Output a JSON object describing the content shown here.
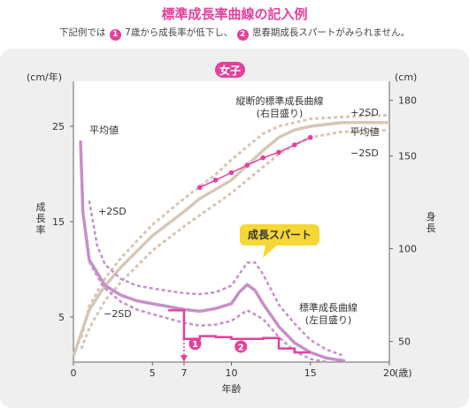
{
  "header": {
    "title": "標準成長率曲線の記入例",
    "subtitle": {
      "prefix": "下記例では",
      "badge1": "1",
      "part1": "7歳から成長率が低下し、",
      "badge2": "2",
      "part2": "思春期成長スパートがみられません。"
    }
  },
  "chart_data": {
    "type": "line",
    "group_label": "女子",
    "xlabel": "年齢",
    "x_unit": "(歳)",
    "x_ticks": [
      "0",
      "5",
      "7",
      "10",
      "15",
      "20"
    ],
    "xlim": [
      0,
      20
    ],
    "left_axis": {
      "unit": "(cm/年)",
      "label": "成長率",
      "ticks": [
        "5",
        "15",
        "25"
      ],
      "ylim": [
        0,
        28
      ]
    },
    "right_axis": {
      "unit": "(cm)",
      "label": "身長",
      "ticks": [
        "50",
        "100",
        "150",
        "180"
      ],
      "ylim": [
        40,
        183
      ]
    },
    "annotations": {
      "height_curve_title": "縦断的標準成長曲線\n(右目盛り)",
      "velocity_curve_title": "標準成長曲線\n(左目盛り)",
      "spurt_callout": "成長スパート",
      "plus2sd": "+2SD",
      "minus2sd": "−2SD",
      "mean": "平均値",
      "marker1": "1",
      "marker2": "2"
    },
    "colors": {
      "height_curve": "#d6c7b7",
      "velocity_curve": "#c690c8",
      "patient": "#e4419b",
      "callout": "#f5d735"
    },
    "series": [
      {
        "axis": "right",
        "values": [
          [
            0,
            42
          ],
          [
            1,
            67
          ],
          [
            2,
            80
          ],
          [
            3,
            90
          ],
          [
            5,
            107
          ],
          [
            7,
            120
          ],
          [
            8,
            127
          ],
          [
            10,
            137
          ],
          [
            11,
            145
          ],
          [
            12,
            153
          ],
          [
            13,
            160
          ],
          [
            14,
            164
          ],
          [
            15,
            166
          ],
          [
            17,
            168
          ],
          [
            20,
            168
          ]
        ]
      },
      {
        "axis": "right",
        "values": [
          [
            0.5,
            52
          ],
          [
            1,
            69
          ],
          [
            2,
            84
          ],
          [
            3,
            95
          ],
          [
            5,
            113
          ],
          [
            7,
            127
          ],
          [
            9,
            140
          ],
          [
            10,
            148
          ],
          [
            11,
            155
          ],
          [
            12,
            162
          ],
          [
            13,
            166
          ],
          [
            15,
            170
          ],
          [
            17,
            171
          ],
          [
            20,
            172
          ]
        ]
      },
      {
        "axis": "right",
        "values": [
          [
            0.5,
            46
          ],
          [
            1,
            57
          ],
          [
            2,
            72
          ],
          [
            3,
            82
          ],
          [
            5,
            99
          ],
          [
            7,
            112
          ],
          [
            9,
            124
          ],
          [
            10,
            130
          ],
          [
            11,
            137
          ],
          [
            12,
            144
          ],
          [
            13,
            151
          ],
          [
            14,
            156
          ],
          [
            15,
            160
          ],
          [
            17,
            163
          ],
          [
            20,
            164
          ]
        ]
      },
      {
        "axis": "left",
        "values": [
          [
            0.45,
            23.5
          ],
          [
            0.6,
            16
          ],
          [
            1,
            11
          ],
          [
            2,
            8.3
          ],
          [
            3,
            7.3
          ],
          [
            4,
            6.7
          ],
          [
            5,
            6.4
          ],
          [
            7,
            5.8
          ],
          [
            8,
            5.6
          ],
          [
            9,
            5.9
          ],
          [
            10,
            6.4
          ],
          [
            10.5,
            7.6
          ],
          [
            11,
            8.4
          ],
          [
            11.5,
            7.8
          ],
          [
            12,
            6.4
          ],
          [
            13,
            4
          ],
          [
            14,
            2.3
          ],
          [
            15,
            1.3
          ],
          [
            16,
            0.7
          ],
          [
            17.2,
            0.4
          ]
        ]
      },
      {
        "axis": "left",
        "values": [
          [
            1,
            17.2
          ],
          [
            1.5,
            12.5
          ],
          [
            2,
            10.5
          ],
          [
            3,
            9
          ],
          [
            4,
            8.3
          ],
          [
            5,
            8
          ],
          [
            7,
            7.5
          ],
          [
            8,
            7.4
          ],
          [
            9,
            7.6
          ],
          [
            10,
            8.3
          ],
          [
            11,
            10.7
          ],
          [
            11.5,
            10.7
          ],
          [
            12,
            9.5
          ],
          [
            13,
            6.3
          ],
          [
            14,
            4.3
          ],
          [
            15,
            2.6
          ],
          [
            16,
            1.6
          ],
          [
            17,
            1
          ]
        ]
      },
      {
        "axis": "left",
        "values": [
          [
            1,
            10.8
          ],
          [
            1.5,
            9.3
          ],
          [
            2,
            8
          ],
          [
            3,
            6.6
          ],
          [
            4,
            5.8
          ],
          [
            5,
            5.3
          ],
          [
            7,
            4.4
          ],
          [
            8,
            4.1
          ],
          [
            9,
            4.2
          ],
          [
            10,
            4.6
          ],
          [
            11,
            5.7
          ],
          [
            12,
            4.8
          ],
          [
            13,
            2.9
          ],
          [
            14,
            1.4
          ],
          [
            15,
            0.6
          ],
          [
            16,
            0.3
          ]
        ]
      },
      {
        "axis": "right",
        "values": [
          [
            8,
            133
          ],
          [
            9,
            137
          ],
          [
            10,
            141
          ],
          [
            11,
            145
          ],
          [
            12,
            149
          ],
          [
            13,
            152
          ],
          [
            14,
            156
          ],
          [
            15,
            160
          ]
        ]
      },
      {
        "axis": "left",
        "values": [
          [
            6,
            5.7
          ],
          [
            7,
            5.7
          ],
          [
            7,
            2.7
          ],
          [
            8,
            2.7
          ],
          [
            8,
            3
          ],
          [
            9,
            3
          ],
          [
            9,
            2.9
          ],
          [
            10,
            2.9
          ],
          [
            10,
            2.7
          ],
          [
            12,
            2.7
          ],
          [
            12,
            2.8
          ],
          [
            13,
            2.8
          ],
          [
            13,
            1.7
          ],
          [
            14,
            1.7
          ],
          [
            14,
            1.3
          ],
          [
            15,
            1.3
          ]
        ]
      }
    ]
  }
}
